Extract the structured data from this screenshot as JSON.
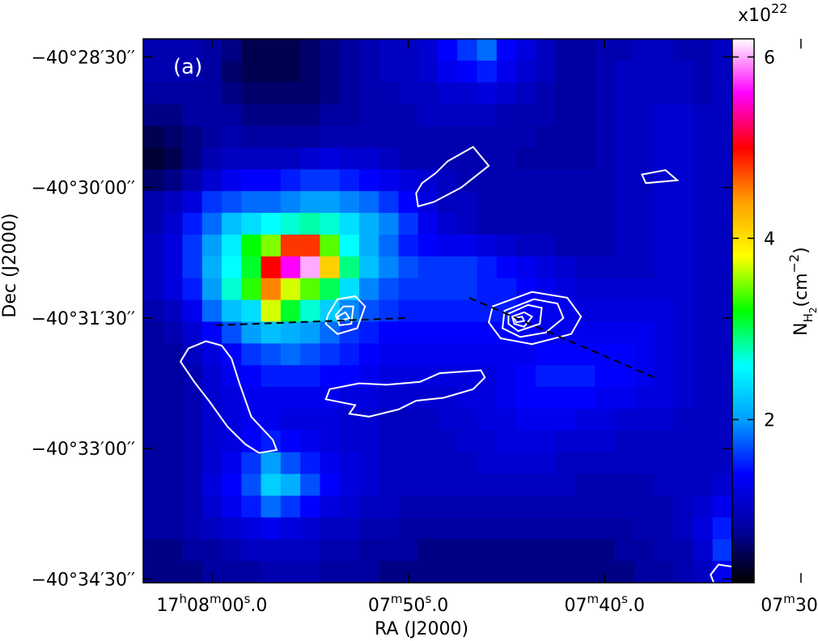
{
  "chart_data": {
    "type": "heatmap",
    "panel_label": "(a)",
    "xlabel": "RA (J2000)",
    "ylabel": "Dec (J2000)",
    "x_ticks": [
      {
        "value": 0,
        "h": "17",
        "m": "08",
        "s": "00.0",
        "full": true
      },
      {
        "value": 10,
        "h": "",
        "m": "07",
        "s": "50.0",
        "full": false
      },
      {
        "value": 20,
        "h": "",
        "m": "07",
        "s": "40.0",
        "full": false
      },
      {
        "value": 30,
        "h": "",
        "m": "07",
        "s": "30.0",
        "full": false
      }
    ],
    "y_ticks": [
      {
        "value": 0,
        "label": "−40°28′30′′"
      },
      {
        "value": 90,
        "label": "−40°30′00′′"
      },
      {
        "value": 180,
        "label": "−40°31′30′′"
      },
      {
        "value": 270,
        "label": "−40°33′00′′"
      },
      {
        "value": 360,
        "label": "−40°34′30′′"
      }
    ],
    "colorbar": {
      "label_main": "N",
      "label_sub": "H",
      "label_subsub": "2",
      "label_unit": "(cm",
      "label_exp": "−2",
      "label_close": ")",
      "multiplier_base": "x10",
      "multiplier_exp": "22",
      "ticks": [
        "6",
        "4",
        "2"
      ],
      "tick_values": [
        6,
        4,
        2
      ],
      "range": [
        0.2,
        6.2
      ],
      "colormap": [
        "#000000",
        "#0000a0",
        "#0000ff",
        "#00a0ff",
        "#00ffff",
        "#00ff00",
        "#ffff00",
        "#ffa000",
        "#ff0000",
        "#ff00ff",
        "#ffffff"
      ]
    },
    "column_density_grid": [
      [
        0.9,
        0.9,
        0.9,
        0.8,
        0.7,
        0.5,
        0.5,
        0.5,
        0.6,
        0.7,
        0.8,
        0.9,
        1.0,
        1.0,
        1.1,
        1.4,
        1.6,
        1.8,
        1.4,
        1.2,
        1.0,
        0.8,
        0.8,
        0.9,
        0.9,
        1.0,
        1.0,
        0.9,
        0.9,
        1.0
      ],
      [
        0.9,
        0.9,
        0.9,
        0.8,
        0.6,
        0.5,
        0.5,
        0.5,
        0.6,
        0.7,
        0.8,
        0.9,
        1.0,
        1.0,
        1.1,
        1.3,
        1.4,
        1.5,
        1.3,
        1.1,
        1.0,
        0.8,
        0.8,
        0.9,
        1.0,
        1.0,
        1.0,
        1.0,
        0.9,
        1.0
      ],
      [
        0.8,
        0.8,
        0.8,
        0.8,
        0.7,
        0.6,
        0.6,
        0.6,
        0.6,
        0.7,
        0.8,
        0.9,
        0.9,
        1.0,
        1.0,
        1.1,
        1.1,
        1.2,
        1.1,
        1.0,
        0.9,
        0.8,
        0.8,
        0.9,
        1.0,
        1.0,
        1.0,
        1.0,
        0.9,
        1.0
      ],
      [
        0.7,
        0.7,
        0.8,
        0.8,
        0.8,
        0.7,
        0.7,
        0.7,
        0.7,
        0.8,
        0.8,
        0.9,
        0.9,
        0.9,
        1.0,
        1.0,
        1.0,
        1.0,
        0.9,
        0.9,
        0.9,
        0.8,
        0.8,
        0.9,
        1.0,
        1.0,
        1.1,
        1.1,
        1.0,
        1.0
      ],
      [
        0.5,
        0.6,
        0.7,
        0.8,
        0.9,
        0.8,
        0.8,
        0.8,
        0.8,
        0.9,
        0.9,
        0.9,
        0.9,
        0.9,
        0.9,
        0.9,
        0.9,
        0.9,
        0.9,
        0.9,
        0.8,
        0.8,
        0.8,
        0.9,
        1.0,
        1.0,
        1.1,
        1.1,
        1.0,
        1.0
      ],
      [
        0.4,
        0.5,
        0.7,
        0.9,
        1.0,
        1.0,
        1.0,
        1.0,
        1.1,
        1.2,
        1.1,
        1.1,
        1.0,
        0.9,
        0.9,
        0.9,
        0.9,
        0.9,
        0.9,
        0.8,
        0.8,
        0.8,
        0.8,
        0.9,
        1.0,
        1.0,
        1.1,
        1.1,
        1.0,
        1.0
      ],
      [
        0.6,
        0.7,
        0.9,
        1.1,
        1.3,
        1.4,
        1.4,
        1.5,
        1.6,
        1.6,
        1.5,
        1.4,
        1.3,
        1.2,
        1.1,
        1.0,
        0.9,
        0.9,
        0.9,
        0.9,
        0.9,
        0.9,
        0.9,
        0.9,
        1.0,
        1.0,
        1.1,
        1.1,
        1.0,
        1.0
      ],
      [
        0.9,
        1.0,
        1.2,
        1.6,
        1.7,
        1.8,
        1.8,
        1.9,
        2.0,
        2.0,
        1.9,
        1.8,
        1.6,
        1.4,
        1.2,
        1.0,
        1.0,
        0.9,
        0.9,
        0.9,
        0.9,
        0.9,
        0.9,
        0.9,
        1.0,
        1.0,
        1.1,
        1.1,
        1.0,
        1.0
      ],
      [
        0.9,
        1.1,
        1.5,
        1.8,
        2.2,
        2.4,
        2.6,
        2.7,
        2.8,
        2.7,
        2.4,
        2.1,
        1.9,
        1.6,
        1.3,
        1.1,
        1.0,
        0.9,
        0.9,
        0.9,
        0.9,
        0.9,
        0.9,
        0.9,
        1.0,
        1.0,
        1.1,
        1.1,
        1.0,
        1.0
      ],
      [
        1.0,
        1.2,
        1.6,
        2.0,
        2.5,
        3.2,
        3.5,
        4.8,
        4.8,
        3.4,
        2.6,
        2.1,
        1.8,
        1.5,
        1.4,
        1.3,
        1.3,
        1.2,
        1.1,
        1.0,
        1.0,
        0.9,
        0.9,
        0.9,
        1.0,
        1.0,
        1.1,
        1.1,
        1.0,
        1.0
      ],
      [
        1.0,
        1.2,
        1.6,
        2.1,
        2.6,
        3.1,
        5.0,
        5.6,
        6.0,
        4.1,
        2.9,
        2.2,
        1.9,
        1.7,
        1.6,
        1.6,
        1.6,
        1.5,
        1.4,
        1.3,
        1.2,
        1.1,
        1.0,
        1.0,
        1.0,
        1.0,
        1.1,
        1.1,
        1.0,
        1.0
      ],
      [
        1.0,
        1.2,
        1.5,
        2.0,
        2.7,
        3.3,
        4.5,
        3.7,
        3.4,
        3.0,
        2.4,
        1.9,
        1.7,
        1.6,
        1.6,
        1.6,
        1.6,
        1.5,
        1.5,
        1.4,
        1.3,
        1.2,
        1.1,
        1.1,
        1.1,
        1.1,
        1.1,
        1.1,
        1.0,
        1.0
      ],
      [
        0.9,
        1.0,
        1.3,
        1.8,
        2.2,
        2.4,
        3.7,
        3.1,
        2.7,
        2.3,
        1.9,
        1.7,
        1.6,
        1.5,
        1.5,
        1.5,
        1.5,
        1.5,
        1.5,
        1.4,
        1.3,
        1.3,
        1.2,
        1.2,
        1.2,
        1.2,
        1.2,
        1.1,
        1.0,
        1.0
      ],
      [
        0.8,
        0.9,
        1.1,
        1.4,
        1.7,
        2.0,
        2.2,
        2.1,
        2.0,
        1.8,
        1.6,
        1.5,
        1.4,
        1.4,
        1.4,
        1.4,
        1.4,
        1.4,
        1.4,
        1.4,
        1.3,
        1.3,
        1.3,
        1.3,
        1.3,
        1.3,
        1.2,
        1.1,
        1.0,
        1.0
      ],
      [
        0.8,
        0.8,
        1.0,
        1.2,
        1.4,
        1.6,
        1.7,
        1.8,
        1.7,
        1.6,
        1.5,
        1.4,
        1.3,
        1.3,
        1.3,
        1.3,
        1.3,
        1.3,
        1.3,
        1.3,
        1.4,
        1.4,
        1.4,
        1.4,
        1.4,
        1.3,
        1.2,
        1.1,
        1.0,
        1.0
      ],
      [
        0.8,
        0.8,
        0.9,
        1.1,
        1.3,
        1.4,
        1.5,
        1.5,
        1.5,
        1.4,
        1.4,
        1.3,
        1.2,
        1.2,
        1.2,
        1.2,
        1.2,
        1.2,
        1.3,
        1.4,
        1.5,
        1.5,
        1.5,
        1.4,
        1.4,
        1.3,
        1.2,
        1.1,
        1.0,
        1.0
      ],
      [
        0.8,
        0.8,
        0.9,
        1.1,
        1.2,
        1.3,
        1.3,
        1.3,
        1.3,
        1.3,
        1.2,
        1.2,
        1.1,
        1.1,
        1.1,
        1.1,
        1.2,
        1.2,
        1.3,
        1.4,
        1.4,
        1.4,
        1.4,
        1.3,
        1.3,
        1.2,
        1.2,
        1.1,
        1.0,
        1.0
      ],
      [
        0.8,
        0.8,
        0.9,
        1.1,
        1.2,
        1.3,
        1.3,
        1.2,
        1.2,
        1.2,
        1.1,
        1.1,
        1.0,
        1.0,
        1.0,
        1.1,
        1.1,
        1.2,
        1.2,
        1.3,
        1.3,
        1.3,
        1.2,
        1.2,
        1.1,
        1.1,
        1.1,
        1.0,
        1.0,
        1.0
      ],
      [
        0.8,
        0.8,
        0.9,
        1.1,
        1.2,
        1.4,
        1.5,
        1.4,
        1.3,
        1.2,
        1.1,
        1.1,
        1.0,
        1.0,
        1.0,
        1.0,
        1.1,
        1.1,
        1.2,
        1.2,
        1.2,
        1.1,
        1.1,
        1.1,
        1.0,
        1.0,
        1.0,
        1.0,
        1.0,
        1.0
      ],
      [
        0.8,
        0.8,
        0.9,
        1.1,
        1.3,
        1.6,
        2.0,
        1.7,
        1.5,
        1.3,
        1.2,
        1.1,
        1.0,
        1.0,
        1.0,
        1.0,
        1.0,
        1.1,
        1.1,
        1.1,
        1.1,
        1.0,
        1.0,
        1.0,
        1.0,
        1.0,
        1.0,
        1.0,
        1.0,
        1.0
      ],
      [
        0.8,
        0.8,
        0.9,
        1.2,
        1.4,
        1.7,
        2.3,
        2.1,
        1.7,
        1.4,
        1.2,
        1.1,
        1.0,
        1.0,
        1.0,
        1.0,
        1.0,
        1.0,
        1.0,
        1.0,
        1.0,
        1.0,
        0.9,
        0.9,
        0.9,
        0.9,
        1.0,
        1.0,
        1.0,
        1.1
      ],
      [
        0.8,
        0.8,
        0.9,
        1.1,
        1.3,
        1.5,
        1.8,
        1.6,
        1.4,
        1.2,
        1.1,
        1.0,
        1.0,
        0.9,
        0.9,
        0.9,
        0.9,
        0.9,
        0.9,
        0.9,
        0.9,
        0.9,
        0.9,
        0.9,
        0.9,
        0.9,
        0.9,
        1.0,
        1.1,
        1.3
      ],
      [
        0.8,
        0.8,
        0.9,
        1.0,
        1.1,
        1.2,
        1.3,
        1.2,
        1.1,
        1.0,
        1.0,
        0.9,
        0.9,
        0.8,
        0.8,
        0.8,
        0.8,
        0.8,
        0.8,
        0.8,
        0.8,
        0.8,
        0.8,
        0.8,
        0.8,
        0.9,
        0.9,
        1.0,
        1.2,
        1.5
      ],
      [
        0.7,
        0.7,
        0.8,
        0.8,
        0.9,
        1.0,
        1.0,
        1.0,
        1.0,
        0.9,
        0.9,
        0.8,
        0.8,
        0.8,
        0.7,
        0.7,
        0.7,
        0.7,
        0.7,
        0.7,
        0.7,
        0.7,
        0.7,
        0.7,
        0.8,
        0.8,
        0.9,
        0.9,
        1.1,
        1.6
      ],
      [
        0.7,
        0.7,
        0.7,
        0.8,
        0.8,
        0.8,
        0.9,
        0.9,
        0.9,
        0.8,
        0.8,
        0.8,
        0.7,
        0.7,
        0.7,
        0.7,
        0.7,
        0.7,
        0.7,
        0.7,
        0.7,
        0.7,
        0.7,
        0.7,
        0.7,
        0.8,
        0.8,
        0.9,
        1.0,
        1.3
      ]
    ],
    "contours": [
      {
        "group": "source-1",
        "points": [
          [
            2.3,
            201
          ],
          [
            3.2,
            196
          ],
          [
            4.0,
            199
          ],
          [
            4.5,
            208
          ],
          [
            4.9,
            225
          ],
          [
            5.5,
            248
          ],
          [
            6.6,
            264
          ],
          [
            6.8,
            271
          ],
          [
            5.9,
            273
          ],
          [
            5.2,
            267
          ],
          [
            4.3,
            255
          ],
          [
            3.4,
            238
          ],
          [
            2.6,
            224
          ],
          [
            1.9,
            210
          ],
          [
            2.3,
            201
          ]
        ]
      },
      {
        "group": "source-2",
        "points": [
          [
            9.5,
            229
          ],
          [
            11.0,
            225
          ],
          [
            12.4,
            226
          ],
          [
            14.1,
            224
          ],
          [
            15.1,
            218
          ],
          [
            17.2,
            216
          ],
          [
            17.4,
            221
          ],
          [
            16.8,
            229
          ],
          [
            15.3,
            235
          ],
          [
            13.9,
            237
          ],
          [
            13.0,
            243
          ],
          [
            11.5,
            248
          ],
          [
            10.5,
            246
          ],
          [
            10.8,
            240
          ],
          [
            9.3,
            236
          ],
          [
            9.5,
            229
          ]
        ]
      },
      {
        "group": "source-3",
        "points": [
          [
            17.8,
            172
          ],
          [
            19.8,
            162
          ],
          [
            21.6,
            166
          ],
          [
            22.3,
            179
          ],
          [
            21.8,
            191
          ],
          [
            19.8,
            198
          ],
          [
            18.2,
            194
          ],
          [
            17.6,
            183
          ],
          [
            17.8,
            172
          ]
        ]
      },
      {
        "group": "source-3",
        "points": [
          [
            18.4,
            175
          ],
          [
            19.9,
            167
          ],
          [
            21.1,
            170
          ],
          [
            21.4,
            180
          ],
          [
            20.5,
            190
          ],
          [
            19.2,
            193
          ],
          [
            18.3,
            187
          ],
          [
            18.4,
            175
          ]
        ]
      },
      {
        "group": "source-3",
        "points": [
          [
            18.6,
            177
          ],
          [
            19.6,
            171
          ],
          [
            20.3,
            173
          ],
          [
            20.2,
            184
          ],
          [
            19.1,
            189
          ],
          [
            18.6,
            184
          ],
          [
            18.6,
            177
          ]
        ]
      },
      {
        "group": "source-3",
        "points": [
          [
            18.8,
            179
          ],
          [
            19.4,
            176
          ],
          [
            19.8,
            179
          ],
          [
            19.4,
            186
          ],
          [
            18.9,
            184
          ],
          [
            18.8,
            179
          ]
        ]
      },
      {
        "group": "source-3",
        "points": [
          [
            18.9,
            180
          ],
          [
            19.3,
            179
          ],
          [
            19.4,
            182
          ],
          [
            19.0,
            183
          ],
          [
            18.9,
            180
          ]
        ]
      },
      {
        "group": "clump-1",
        "points": [
          [
            9.4,
            178
          ],
          [
            9.9,
            167
          ],
          [
            10.8,
            165
          ],
          [
            11.3,
            172
          ],
          [
            10.9,
            187
          ],
          [
            9.9,
            191
          ],
          [
            9.3,
            184
          ],
          [
            9.4,
            178
          ]
        ]
      },
      {
        "group": "clump-1",
        "points": [
          [
            9.8,
            178
          ],
          [
            10.2,
            172
          ],
          [
            10.7,
            172
          ],
          [
            10.6,
            184
          ],
          [
            10.0,
            185
          ],
          [
            9.8,
            178
          ]
        ]
      },
      {
        "group": "clump-1",
        "points": [
          [
            9.9,
            179
          ],
          [
            10.3,
            176
          ],
          [
            10.5,
            180
          ],
          [
            10.0,
            182
          ],
          [
            9.9,
            179
          ]
        ]
      },
      {
        "group": "clump-2",
        "points": [
          [
            15.5,
            72
          ],
          [
            16.8,
            62
          ],
          [
            17.6,
            75
          ],
          [
            16.2,
            90
          ],
          [
            14.8,
            100
          ],
          [
            14.0,
            103
          ],
          [
            13.9,
            94
          ],
          [
            14.2,
            87
          ],
          [
            14.9,
            80
          ],
          [
            15.5,
            72
          ]
        ]
      },
      {
        "group": "clump-3",
        "points": [
          [
            25.4,
            81
          ],
          [
            26.6,
            78
          ],
          [
            27.2,
            85
          ],
          [
            25.6,
            87
          ],
          [
            25.4,
            81
          ]
        ]
      },
      {
        "group": "clump-3",
        "points": [
          [
            29.3,
            350
          ],
          [
            30.3,
            352
          ],
          [
            30.3,
            363
          ],
          [
            29.1,
            364
          ],
          [
            28.9,
            357
          ],
          [
            29.3,
            350
          ]
        ]
      }
    ],
    "dashed_lines": [
      {
        "name": "cut-1",
        "x1": 3.7,
        "y1": 185,
        "x2": 13.4,
        "y2": 180
      },
      {
        "name": "cut-2",
        "x1": 16.6,
        "y1": 166,
        "x2": 26.2,
        "y2": 222
      }
    ]
  }
}
